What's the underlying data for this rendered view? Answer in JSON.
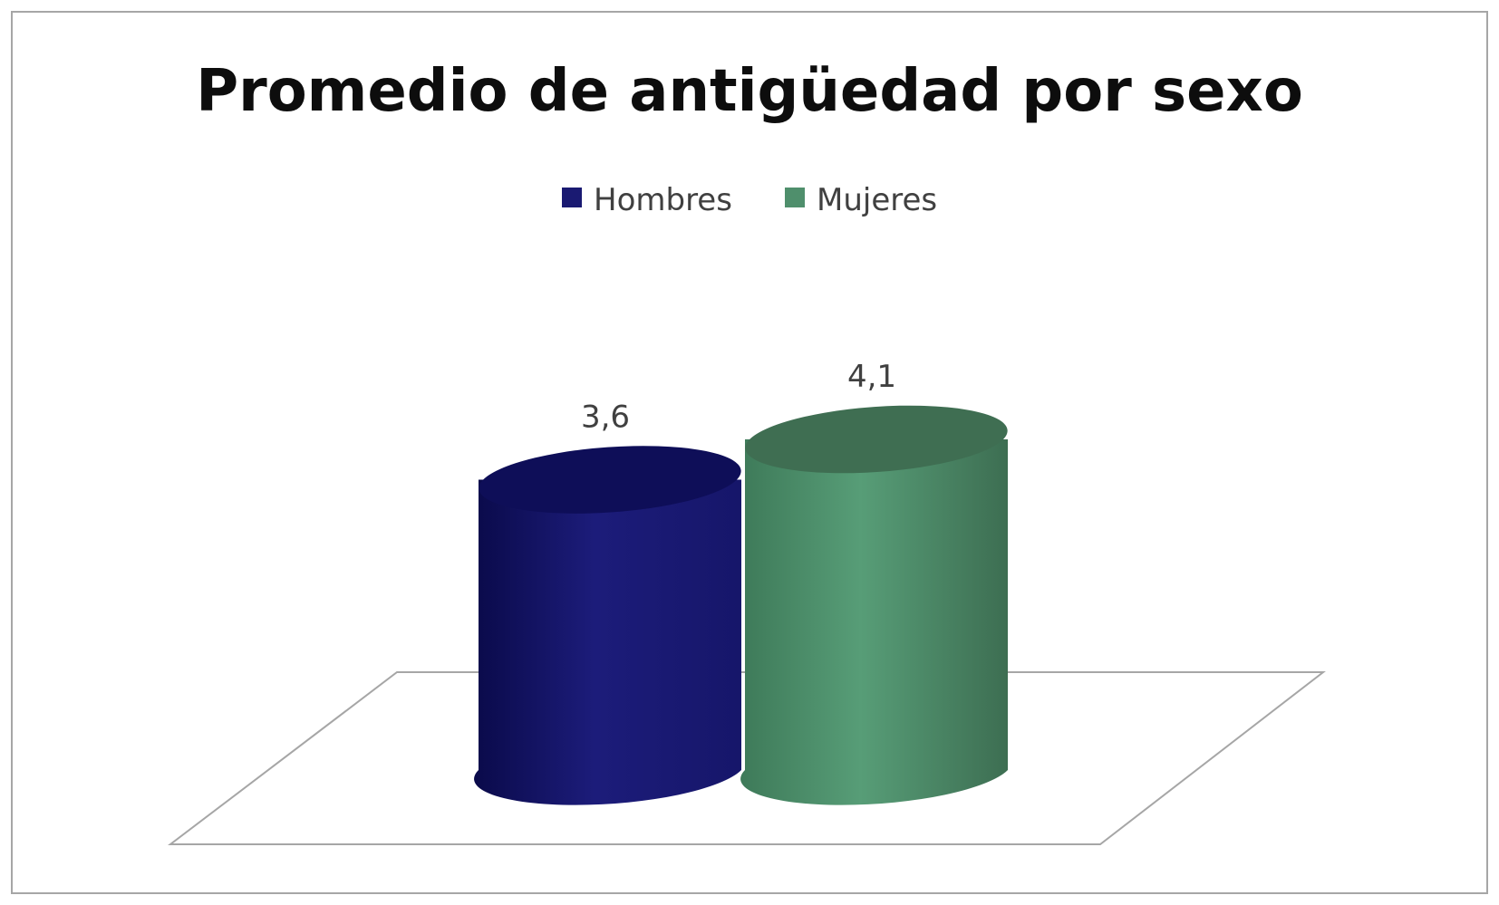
{
  "chart_data": {
    "type": "bar",
    "title": "Promedio de antigüedad por sexo",
    "categories": [
      ""
    ],
    "series": [
      {
        "name": "Hombres",
        "values": [
          3.6
        ],
        "label": "3,6",
        "color": "#1a1a72"
      },
      {
        "name": "Mujeres",
        "values": [
          4.1
        ],
        "label": "4,1",
        "color": "#4f8f6c"
      }
    ],
    "xlabel": "",
    "ylabel": "",
    "ylim": [
      0,
      4.1
    ],
    "legend_position": "top",
    "grid": false,
    "style": "3d-cylinder"
  }
}
